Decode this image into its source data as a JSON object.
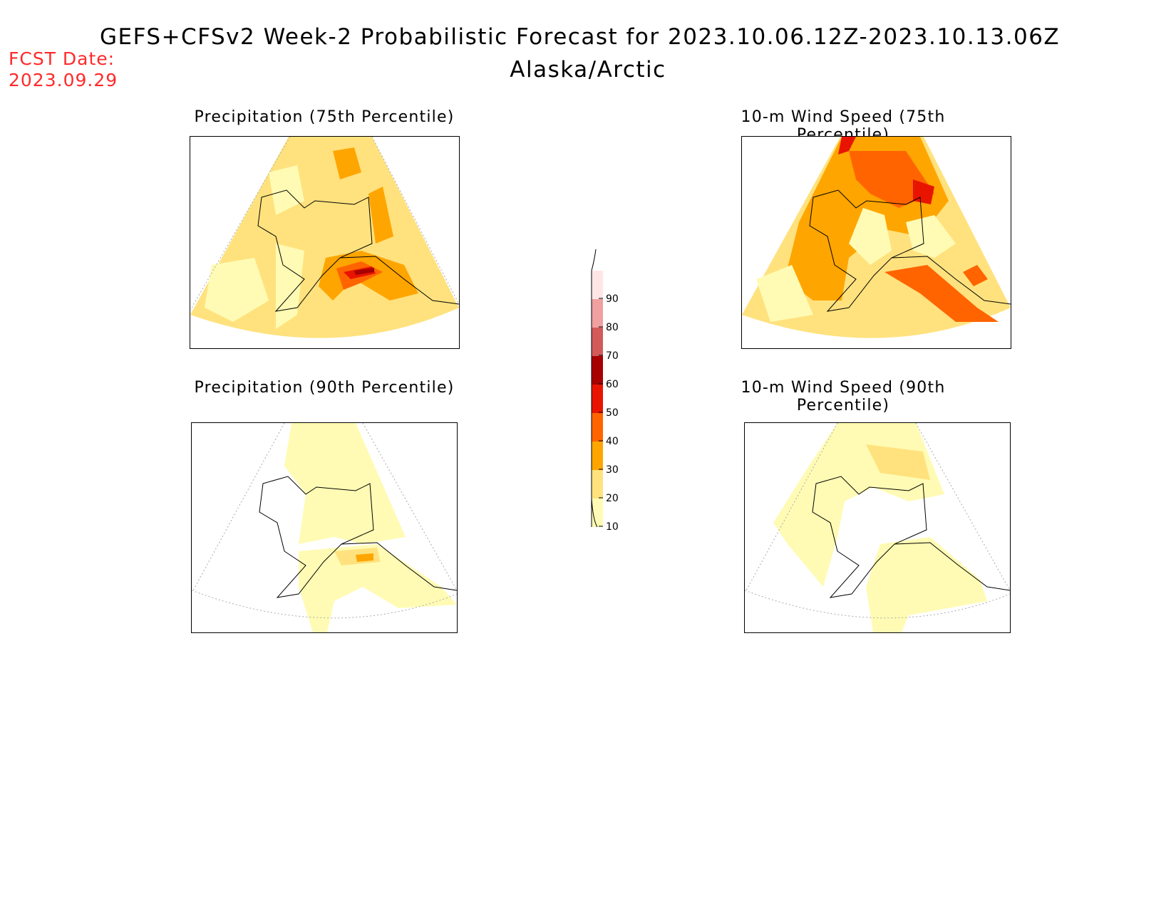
{
  "header": {
    "title": "GEFS+CFSv2 Week-2 Probabilistic Forecast for 2023.10.06.12Z-2023.10.13.06Z",
    "subtitle": "Alaska/Arctic",
    "fcst_label": "FCST Date:",
    "fcst_date": "2023.09.29"
  },
  "panels": [
    {
      "title": "Precipitation (75th Percentile)"
    },
    {
      "title": "10-m Wind Speed (75th Percentile)"
    },
    {
      "title": "Precipitation (90th Percentile)"
    },
    {
      "title": "10-m Wind Speed (90th Percentile)"
    }
  ],
  "colorbar": {
    "ticks": [
      "10",
      "20",
      "30",
      "40",
      "50",
      "60",
      "70",
      "80",
      "90"
    ],
    "colors": [
      "#fffbb4",
      "#ffe27e",
      "#ffa500",
      "#ff6400",
      "#e81400",
      "#a80000",
      "#d25a5a",
      "#f0a0a0",
      "#ffe6e6"
    ]
  }
}
